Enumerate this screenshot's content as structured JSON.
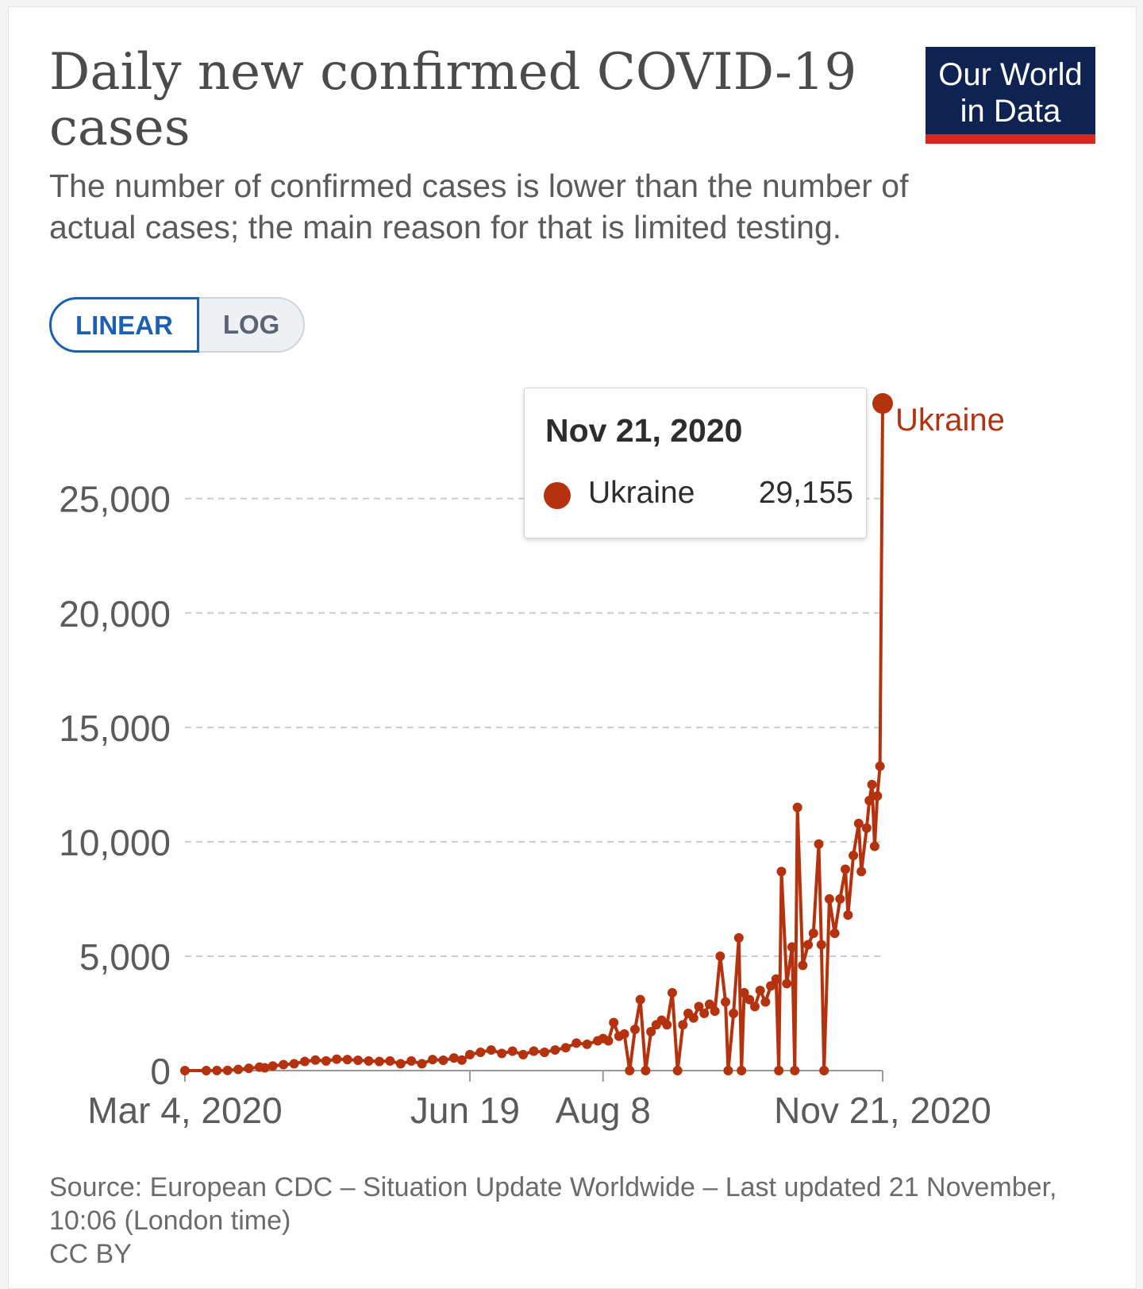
{
  "title": "Daily new confirmed COVID-19 cases",
  "subtitle": "The number of confirmed cases is lower than the number of actual cases; the main reason for that is limited testing.",
  "logo": {
    "line1": "Our World",
    "line2": "in Data"
  },
  "scale_toggle": {
    "linear_label": "LINEAR",
    "log_label": "LOG",
    "selected": "LINEAR"
  },
  "tooltip": {
    "date": "Nov 21, 2020",
    "series": "Ukraine",
    "value": "29,155"
  },
  "footer": {
    "source": "Source: European CDC – Situation Update Worldwide – Last updated 21 November, 10:06 (London time)",
    "license": "CC BY"
  },
  "colors": {
    "series": "#b5320f",
    "grid": "#cccccc",
    "axis_text": "#5b5b5b",
    "logo_bg": "#0e2352",
    "logo_bar": "#d42b21",
    "toggle_active": "#1d5fb3"
  },
  "chart_data": {
    "type": "line",
    "title": "Daily new confirmed COVID-19 cases",
    "x_axis": {
      "start": "2020-03-04",
      "end": "2020-11-21",
      "tick_labels": [
        "Mar 4, 2020",
        "Jun 19",
        "Aug 8",
        "Nov 21, 2020"
      ],
      "tick_dates": [
        "2020-03-04",
        "2020-06-19",
        "2020-08-08",
        "2020-11-21"
      ]
    },
    "y_axis": {
      "ticks": [
        0,
        5000,
        10000,
        15000,
        20000,
        25000
      ],
      "tick_labels": [
        "0",
        "5,000",
        "10,000",
        "15,000",
        "20,000",
        "25,000"
      ],
      "ylim": [
        0,
        29155
      ]
    },
    "grid": "horizontal dashed",
    "series": [
      {
        "name": "Ukraine",
        "end_label": "Ukraine",
        "points": [
          [
            "2020-03-04",
            1
          ],
          [
            "2020-03-12",
            1
          ],
          [
            "2020-03-16",
            3
          ],
          [
            "2020-03-20",
            10
          ],
          [
            "2020-03-24",
            50
          ],
          [
            "2020-03-28",
            100
          ],
          [
            "2020-04-01",
            150
          ],
          [
            "2020-04-03",
            120
          ],
          [
            "2020-04-06",
            200
          ],
          [
            "2020-04-10",
            260
          ],
          [
            "2020-04-14",
            300
          ],
          [
            "2020-04-18",
            400
          ],
          [
            "2020-04-22",
            460
          ],
          [
            "2020-04-26",
            420
          ],
          [
            "2020-04-30",
            500
          ],
          [
            "2020-05-04",
            480
          ],
          [
            "2020-05-08",
            450
          ],
          [
            "2020-05-12",
            420
          ],
          [
            "2020-05-16",
            400
          ],
          [
            "2020-05-20",
            420
          ],
          [
            "2020-05-24",
            300
          ],
          [
            "2020-05-28",
            420
          ],
          [
            "2020-06-01",
            300
          ],
          [
            "2020-06-05",
            480
          ],
          [
            "2020-06-09",
            450
          ],
          [
            "2020-06-13",
            550
          ],
          [
            "2020-06-16",
            460
          ],
          [
            "2020-06-19",
            700
          ],
          [
            "2020-06-23",
            800
          ],
          [
            "2020-06-27",
            900
          ],
          [
            "2020-07-01",
            750
          ],
          [
            "2020-07-05",
            850
          ],
          [
            "2020-07-09",
            700
          ],
          [
            "2020-07-13",
            850
          ],
          [
            "2020-07-17",
            800
          ],
          [
            "2020-07-21",
            900
          ],
          [
            "2020-07-25",
            1000
          ],
          [
            "2020-07-29",
            1200
          ],
          [
            "2020-08-02",
            1150
          ],
          [
            "2020-08-06",
            1300
          ],
          [
            "2020-08-08",
            1400
          ],
          [
            "2020-08-10",
            1300
          ],
          [
            "2020-08-12",
            2100
          ],
          [
            "2020-08-14",
            1500
          ],
          [
            "2020-08-16",
            1600
          ],
          [
            "2020-08-18",
            0
          ],
          [
            "2020-08-20",
            1800
          ],
          [
            "2020-08-22",
            3100
          ],
          [
            "2020-08-24",
            0
          ],
          [
            "2020-08-26",
            1700
          ],
          [
            "2020-08-28",
            2000
          ],
          [
            "2020-08-30",
            2200
          ],
          [
            "2020-09-01",
            2000
          ],
          [
            "2020-09-03",
            3400
          ],
          [
            "2020-09-05",
            0
          ],
          [
            "2020-09-07",
            2000
          ],
          [
            "2020-09-09",
            2500
          ],
          [
            "2020-09-11",
            2300
          ],
          [
            "2020-09-13",
            2800
          ],
          [
            "2020-09-15",
            2500
          ],
          [
            "2020-09-17",
            2900
          ],
          [
            "2020-09-19",
            2600
          ],
          [
            "2020-09-21",
            5000
          ],
          [
            "2020-09-23",
            3000
          ],
          [
            "2020-09-24",
            0
          ],
          [
            "2020-09-26",
            2500
          ],
          [
            "2020-09-28",
            5800
          ],
          [
            "2020-09-29",
            0
          ],
          [
            "2020-09-30",
            3400
          ],
          [
            "2020-10-02",
            3100
          ],
          [
            "2020-10-04",
            2800
          ],
          [
            "2020-10-06",
            3500
          ],
          [
            "2020-10-08",
            3000
          ],
          [
            "2020-10-10",
            3700
          ],
          [
            "2020-10-12",
            4000
          ],
          [
            "2020-10-13",
            0
          ],
          [
            "2020-10-14",
            8700
          ],
          [
            "2020-10-16",
            3800
          ],
          [
            "2020-10-18",
            5400
          ],
          [
            "2020-10-19",
            0
          ],
          [
            "2020-10-20",
            11500
          ],
          [
            "2020-10-22",
            4600
          ],
          [
            "2020-10-24",
            5500
          ],
          [
            "2020-10-26",
            6000
          ],
          [
            "2020-10-28",
            9900
          ],
          [
            "2020-10-29",
            5500
          ],
          [
            "2020-10-30",
            0
          ],
          [
            "2020-11-01",
            7500
          ],
          [
            "2020-11-03",
            6000
          ],
          [
            "2020-11-05",
            7500
          ],
          [
            "2020-11-07",
            8800
          ],
          [
            "2020-11-08",
            6800
          ],
          [
            "2020-11-10",
            9400
          ],
          [
            "2020-11-12",
            10800
          ],
          [
            "2020-11-13",
            8700
          ],
          [
            "2020-11-15",
            10600
          ],
          [
            "2020-11-16",
            11800
          ],
          [
            "2020-11-17",
            12500
          ],
          [
            "2020-11-18",
            9800
          ],
          [
            "2020-11-19",
            12000
          ],
          [
            "2020-11-20",
            13300
          ],
          [
            "2020-11-21",
            29155
          ]
        ]
      }
    ]
  }
}
